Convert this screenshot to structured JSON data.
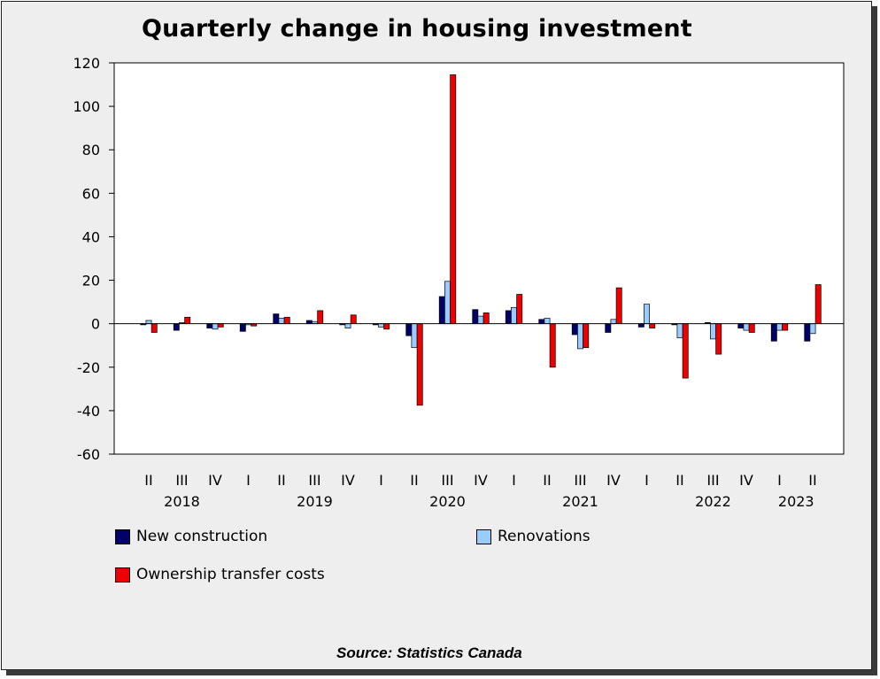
{
  "chart_data": {
    "type": "bar",
    "title": "Quarterly change in housing investment",
    "xlabel": "",
    "ylabel": "",
    "ylim": [
      -60,
      120
    ],
    "yticks": [
      120,
      100,
      80,
      60,
      40,
      20,
      0,
      -20,
      -40,
      -60
    ],
    "categories": [
      "II",
      "III",
      "IV",
      "I",
      "II",
      "III",
      "IV",
      "I",
      "II",
      "III",
      "IV",
      "I",
      "II",
      "III",
      "IV",
      "I",
      "II",
      "III",
      "IV",
      "I",
      "II"
    ],
    "year_labels": [
      {
        "label": "2018",
        "category_index": 1
      },
      {
        "label": "2019",
        "category_index": 5
      },
      {
        "label": "2020",
        "category_index": 9
      },
      {
        "label": "2021",
        "category_index": 13
      },
      {
        "label": "2022",
        "category_index": 17
      },
      {
        "label": "2023",
        "category_index": 19.5
      }
    ],
    "series": [
      {
        "name": "New construction",
        "color": "#000066",
        "values": [
          -0.5,
          -3,
          -2,
          -3.5,
          4.5,
          1.5,
          -0.5,
          -0.5,
          -5.5,
          12.5,
          6.5,
          6,
          2,
          -5,
          -4,
          -1.5,
          -0.5,
          0.5,
          -2,
          -8,
          -8
        ]
      },
      {
        "name": "Renovations",
        "color": "#99ccff",
        "values": [
          1.5,
          0.5,
          -2.5,
          -0.5,
          2.5,
          1,
          -2,
          -1.5,
          -11,
          19.5,
          3.5,
          7.5,
          2.5,
          -11.5,
          2,
          9,
          -6.5,
          -7,
          -3,
          -3,
          -4.5
        ]
      },
      {
        "name": "Ownership transfer costs",
        "color": "#ee0000",
        "values": [
          -4,
          3,
          -1.5,
          -1,
          3,
          6,
          4,
          -2.5,
          -37.5,
          114.5,
          5,
          13.5,
          -20,
          -11,
          16.5,
          -2,
          -25,
          -14,
          -4,
          -3,
          18
        ]
      }
    ],
    "legend_position": "bottom",
    "grid": false
  },
  "source": "Source: Statistics Canada"
}
